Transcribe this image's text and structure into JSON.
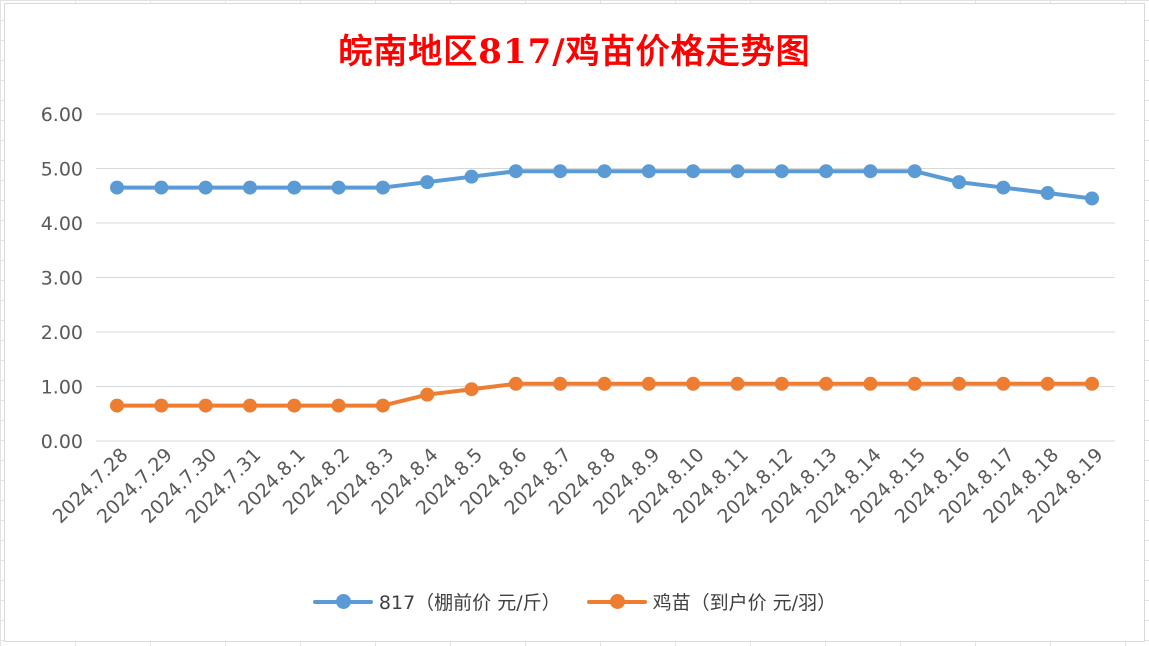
{
  "chart_data": {
    "type": "line",
    "title": "皖南地区817/鸡苗价格走势图",
    "xlabel": "",
    "ylabel": "",
    "ylim": [
      0,
      6
    ],
    "yticks": [
      "0.00",
      "1.00",
      "2.00",
      "3.00",
      "4.00",
      "5.00",
      "6.00"
    ],
    "grid": true,
    "legend_position": "bottom",
    "categories": [
      "2024.7.28",
      "2024.7.29",
      "2024.7.30",
      "2024.7.31",
      "2024.8.1",
      "2024.8.2",
      "2024.8.3",
      "2024.8.4",
      "2024.8.5",
      "2024.8.6",
      "2024.8.7",
      "2024.8.8",
      "2024.8.9",
      "2024.8.10",
      "2024.8.11",
      "2024.8.12",
      "2024.8.13",
      "2024.8.14",
      "2024.8.15",
      "2024.8.16",
      "2024.8.17",
      "2024.8.18",
      "2024.8.19"
    ],
    "series": [
      {
        "name": "817（棚前价 元/斤）",
        "color": "#5b9bd5",
        "values": [
          4.65,
          4.65,
          4.65,
          4.65,
          4.65,
          4.65,
          4.65,
          4.75,
          4.85,
          4.95,
          4.95,
          4.95,
          4.95,
          4.95,
          4.95,
          4.95,
          4.95,
          4.95,
          4.95,
          4.75,
          4.65,
          4.55,
          4.45
        ]
      },
      {
        "name": "鸡苗（到户价 元/羽）",
        "color": "#ed7d31",
        "values": [
          0.65,
          0.65,
          0.65,
          0.65,
          0.65,
          0.65,
          0.65,
          0.85,
          0.95,
          1.05,
          1.05,
          1.05,
          1.05,
          1.05,
          1.05,
          1.05,
          1.05,
          1.05,
          1.05,
          1.05,
          1.05,
          1.05,
          1.05
        ]
      }
    ]
  }
}
